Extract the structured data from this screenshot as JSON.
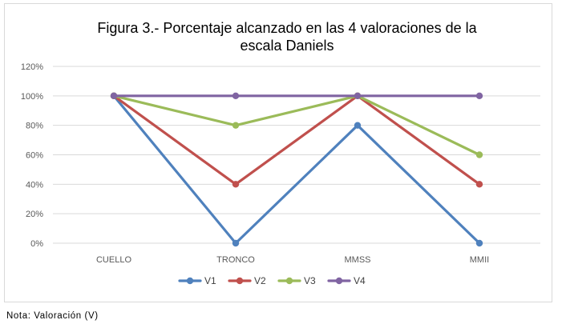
{
  "chart_data": {
    "type": "line",
    "title_lines": [
      "Figura 3.- Porcentaje alcanzado en las 4 valoraciones de la",
      "escala Daniels"
    ],
    "categories": [
      "CUELLO",
      "TRONCO",
      "MMSS",
      "MMII"
    ],
    "series": [
      {
        "name": "V1",
        "color": "#4f81bd",
        "values": [
          100,
          0,
          80,
          0
        ]
      },
      {
        "name": "V2",
        "color": "#c0504d",
        "values": [
          100,
          40,
          100,
          40
        ]
      },
      {
        "name": "V3",
        "color": "#9bbb59",
        "values": [
          100,
          80,
          100,
          60
        ]
      },
      {
        "name": "V4",
        "color": "#8064a2",
        "values": [
          100,
          100,
          100,
          100
        ]
      }
    ],
    "y_ticks": [
      "0%",
      "20%",
      "40%",
      "60%",
      "80%",
      "100%",
      "120%"
    ],
    "ylim": [
      0,
      120
    ],
    "xlabel": "",
    "ylabel": "",
    "grid": true,
    "legend_position": "bottom"
  },
  "note": "Nota: Valoración (V)"
}
